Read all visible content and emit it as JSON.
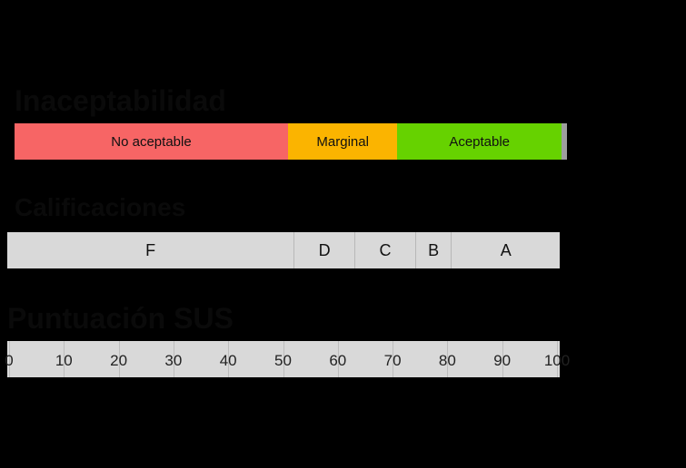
{
  "acceptability": {
    "title": "Inaceptabilidad",
    "segments": [
      {
        "label": "No aceptable",
        "from": 0,
        "to": 50,
        "color": "#f76565"
      },
      {
        "label": "Marginal",
        "from": 50,
        "to": 70,
        "color": "#fbb400"
      },
      {
        "label": "Aceptable",
        "from": 70,
        "to": 100,
        "color": "#66d200"
      },
      {
        "label": "",
        "from": 100,
        "to": 101,
        "color": "#9e9e9e"
      }
    ]
  },
  "grades": {
    "title": "Calificaciones",
    "segments": [
      {
        "label": "F",
        "from": 0,
        "to": 52
      },
      {
        "label": "D",
        "from": 52,
        "to": 63
      },
      {
        "label": "C",
        "from": 63,
        "to": 74
      },
      {
        "label": "B",
        "from": 74,
        "to": 80.5
      },
      {
        "label": "A",
        "from": 80.5,
        "to": 100
      }
    ]
  },
  "scale": {
    "title": "Puntuación SUS",
    "ticks": [
      "0",
      "10",
      "20",
      "30",
      "40",
      "50",
      "60",
      "70",
      "80",
      "90",
      "100"
    ]
  }
}
